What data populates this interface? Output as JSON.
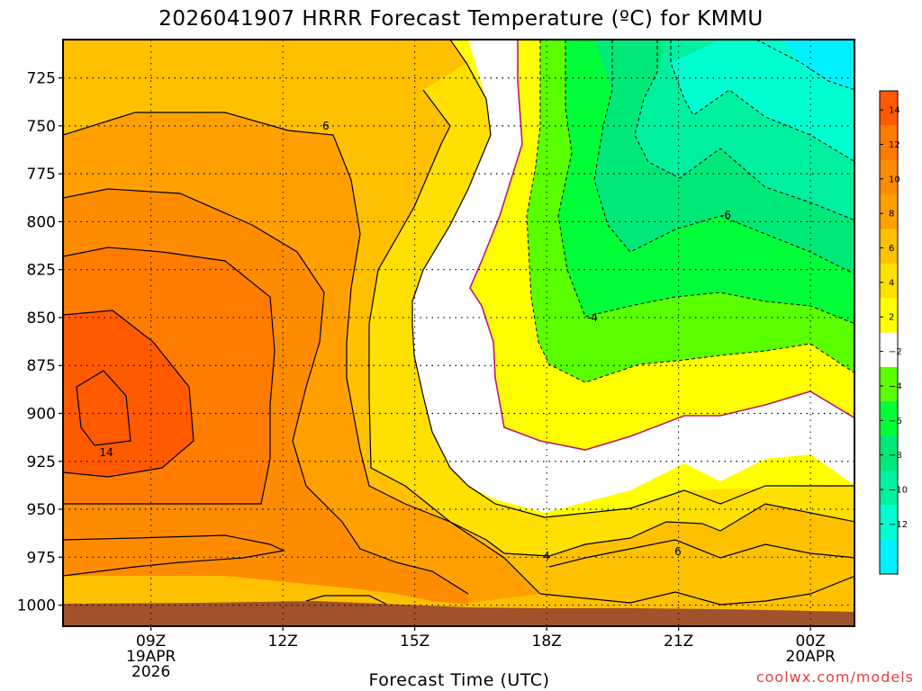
{
  "header": {
    "title": "2026041907 HRRR Forecast Temperature (ºC) for KMMU"
  },
  "footer": {
    "credit": "coolwx.com/models"
  },
  "colors": {
    "t_14": "#ff5a00",
    "t_12": "#ff7c00",
    "t_10": "#ff8c00",
    "t_8": "#ffa000",
    "t_6": "#ffc000",
    "t_4": "#ffe000",
    "t_2": "#ffff00",
    "t_0": "#ffffff",
    "t_m2": "#5aff00",
    "t_m4": "#00ff38",
    "t_m6": "#00e878",
    "t_m8": "#00f0a0",
    "t_m10": "#00ffd0",
    "t_m12": "#00f0ff",
    "ground": "#a0522d",
    "freezing_line": "#c0186a"
  },
  "chart_data": {
    "type": "heatmap",
    "title": "2026041907 HRRR Forecast Temperature (ºC) for KMMU",
    "xlabel": "Forecast Time (UTC)",
    "ylabel": "",
    "x_ticks": [
      {
        "label": "09Z",
        "sub": [
          "19APR",
          "2026"
        ],
        "hour": 9
      },
      {
        "label": "12Z",
        "sub": [],
        "hour": 12
      },
      {
        "label": "15Z",
        "sub": [],
        "hour": 15
      },
      {
        "label": "18Z",
        "sub": [],
        "hour": 18
      },
      {
        "label": "21Z",
        "sub": [],
        "hour": 21
      },
      {
        "label": "00Z",
        "sub": [
          "20APR"
        ],
        "hour": 24
      }
    ],
    "xlim": [
      7,
      25
    ],
    "y_ticks": [
      725,
      750,
      775,
      800,
      825,
      850,
      875,
      900,
      925,
      950,
      975,
      1000
    ],
    "ylim": [
      1011,
      705
    ],
    "y_unit": "hPa",
    "colorbar": {
      "labels": [
        "14",
        "12",
        "10",
        "8",
        "6",
        "4",
        "2",
        "-2",
        "-4",
        "-6",
        "-8",
        "-10",
        "-12"
      ]
    },
    "contour_labels": [
      "6",
      "-6",
      "-4",
      "14",
      "4",
      "6"
    ],
    "grid": true
  }
}
